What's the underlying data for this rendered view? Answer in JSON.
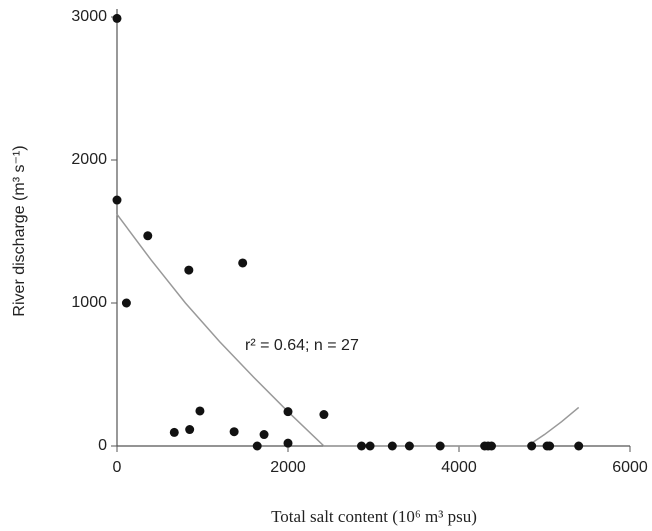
{
  "chart_data": {
    "type": "scatter",
    "xlabel": "Total salt content (10⁶ m³ psu)",
    "ylabel": "River discharge (m³ s⁻¹)",
    "annotation": "r² = 0.64; n = 27",
    "x": [
      0,
      0,
      110,
      360,
      840,
      1470,
      670,
      850,
      970,
      1370,
      1640,
      1720,
      2000,
      2000,
      2420,
      2860,
      2960,
      3220,
      3420,
      3780,
      4300,
      4340,
      4380,
      4850,
      5030,
      5060,
      5400
    ],
    "values": [
      2990,
      1720,
      1000,
      1470,
      1230,
      1280,
      95,
      115,
      245,
      100,
      0,
      80,
      240,
      20,
      220,
      0,
      0,
      0,
      0,
      0,
      0,
      0,
      0,
      0,
      0,
      0,
      0
    ],
    "color": "#111111",
    "fit": {
      "x": [
        0,
        400,
        800,
        1200,
        1600,
        2000,
        2420,
        4800,
        5000,
        5200,
        5400
      ],
      "values": [
        1620,
        1300,
        1000,
        730,
        480,
        240,
        0,
        0,
        80,
        170,
        270
      ],
      "color": "#999999"
    },
    "xlim": [
      0,
      6000
    ],
    "ylim": [
      0,
      3000
    ],
    "xticks": [
      0,
      2000,
      4000,
      6000
    ],
    "yticks": [
      0,
      1000,
      2000,
      3000
    ]
  }
}
